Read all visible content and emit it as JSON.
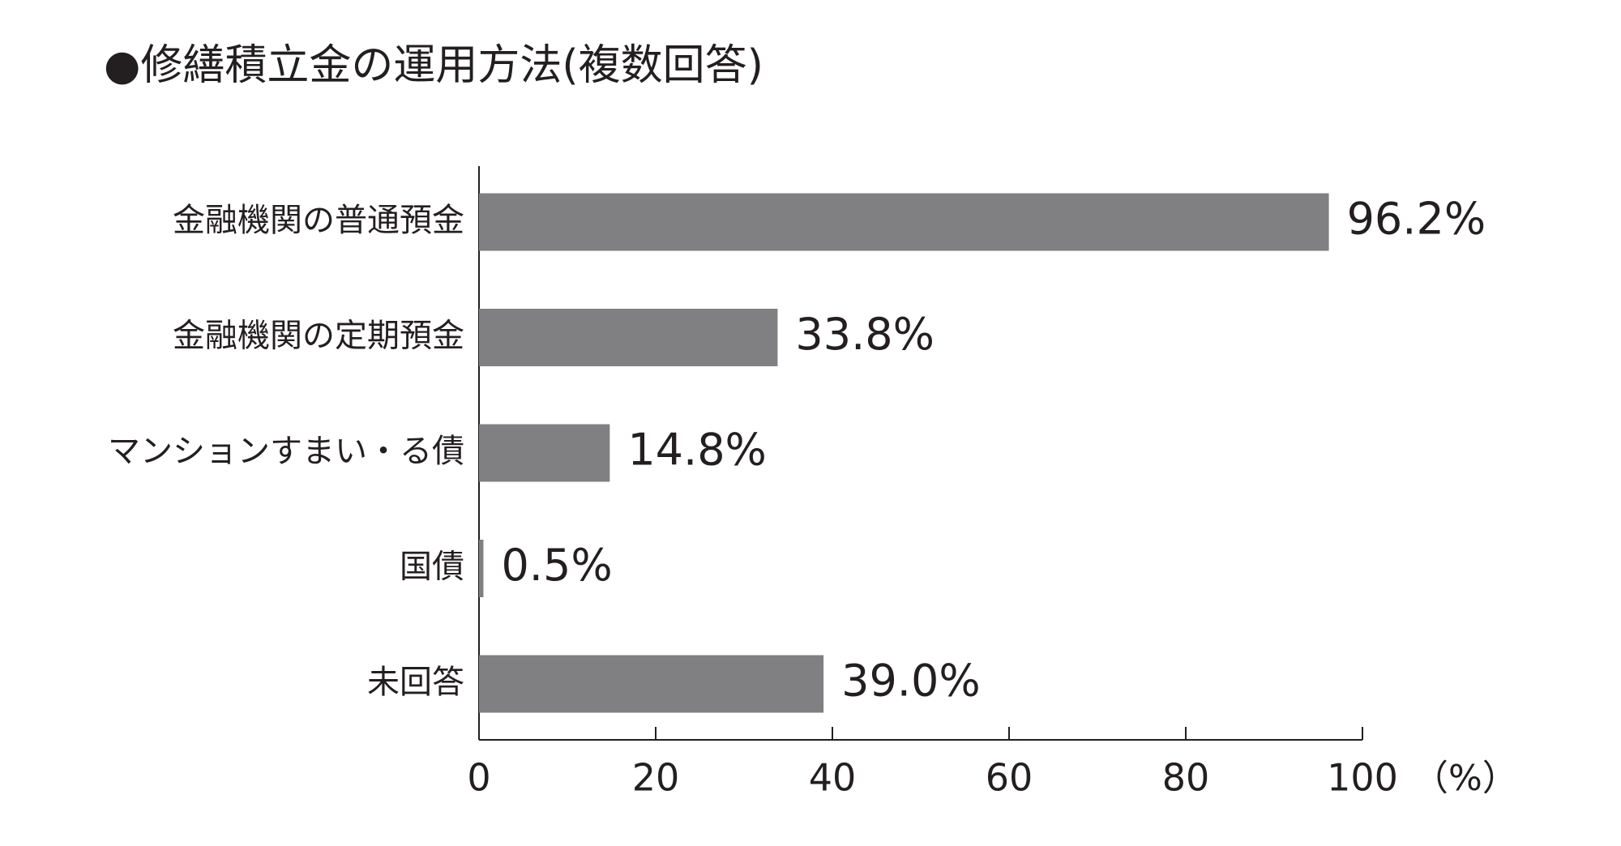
{
  "chart_data": {
    "type": "bar",
    "orientation": "horizontal",
    "title": "●修繕積立金の運用方法(複数回答)",
    "categories": [
      "金融機関の普通預金",
      "金融機関の定期預金",
      "マンションすまい・る債",
      "国債",
      "未回答"
    ],
    "values": [
      96.2,
      33.8,
      14.8,
      0.5,
      39.0
    ],
    "value_labels": [
      "96.2%",
      "33.8%",
      "14.8%",
      "0.5%",
      "39.0%"
    ],
    "color": "#808083",
    "xlim": [
      0,
      100
    ],
    "xticks": [
      0,
      20,
      40,
      60,
      80,
      100
    ],
    "xlabel": "（%）"
  }
}
